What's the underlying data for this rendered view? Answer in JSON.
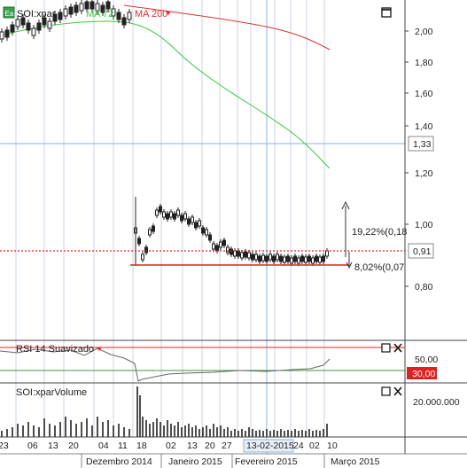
{
  "legend": {
    "icon_label": "Ea",
    "symbol": "SOI:xpar",
    "ma_short": "MA 72",
    "ma_long": "MA 200",
    "ma_short_color": "#3ec83e",
    "ma_long_color": "#e03030"
  },
  "price_axis": {
    "ticks": [
      "2,00",
      "1,80",
      "1,60",
      "1,40",
      "1,20",
      "1,00",
      "0,80"
    ],
    "marker_horizontal": "1,33",
    "marker_current": "0,91"
  },
  "annotations": {
    "up_label": "19,22%(0,18",
    "down_label": "8,02%(0,07"
  },
  "rsi": {
    "title": "RSI 14 Suavizado",
    "tick_top": "50,00",
    "marker": "30,00",
    "line_color": "#e03030",
    "line30_color": "#3a9a3a"
  },
  "volume": {
    "title": "SOI:xparVolume",
    "tick": "20.000.000"
  },
  "date_axis": {
    "days": [
      "23",
      "06",
      "13",
      "20",
      "04",
      "11",
      "18",
      "02",
      "13",
      "20",
      "27",
      "13-02-2015",
      "24",
      "02",
      "10"
    ],
    "months": [
      "Dezembro 2014",
      "Janeiro 2015",
      "Fevereiro 2015",
      "Março 2015"
    ]
  },
  "icons": {
    "maximize": "maximize-icon",
    "close": "close-icon",
    "dropdown": "dropdown-arrow-icon"
  },
  "colors": {
    "grid": "#b8c8dd",
    "candle": "#222222",
    "support_line": "#e02020",
    "current_line": "#e02020",
    "crosshair": "#8ab4d8"
  }
}
